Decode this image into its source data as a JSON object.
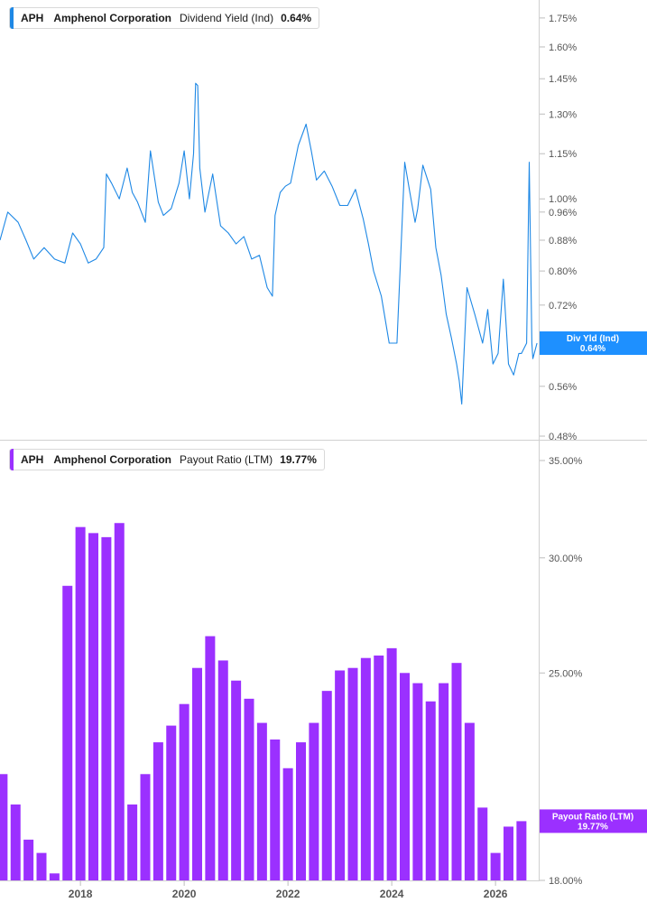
{
  "legend_top": {
    "ticker": "APH",
    "company": "Amphenol Corporation",
    "metric": "Dividend Yield (Ind)",
    "value": "0.64%"
  },
  "legend_bottom": {
    "ticker": "APH",
    "company": "Amphenol Corporation",
    "metric": "Payout Ratio (LTM)",
    "value": "19.77%"
  },
  "colors": {
    "yield_line": "#1e88e5",
    "yield_badge": "#1e90ff",
    "payout_bar": "#9b30ff",
    "payout_badge": "#9b30ff",
    "axis_text": "#555555",
    "grid_line": "#bdbdbd"
  },
  "chart_data": [
    {
      "type": "line",
      "title": "Dividend Yield (Ind)",
      "series": [
        {
          "name": "Div Yld (Ind)",
          "x": [
            2016.45,
            2016.6,
            2016.8,
            2016.95,
            2017.1,
            2017.3,
            2017.5,
            2017.7,
            2017.85,
            2018.0,
            2018.15,
            2018.3,
            2018.45,
            2018.5,
            2018.6,
            2018.75,
            2018.9,
            2019.0,
            2019.1,
            2019.25,
            2019.35,
            2019.5,
            2019.6,
            2019.75,
            2019.9,
            2020.0,
            2020.1,
            2020.18,
            2020.22,
            2020.26,
            2020.3,
            2020.4,
            2020.55,
            2020.7,
            2020.85,
            2021.0,
            2021.15,
            2021.3,
            2021.45,
            2021.6,
            2021.7,
            2021.75,
            2021.85,
            2021.95,
            2022.05,
            2022.2,
            2022.35,
            2022.45,
            2022.55,
            2022.7,
            2022.85,
            2023.0,
            2023.15,
            2023.3,
            2023.45,
            2023.55,
            2023.65,
            2023.8,
            2023.95,
            2024.1,
            2024.25,
            2024.35,
            2024.45,
            2024.5,
            2024.6,
            2024.75,
            2024.85,
            2024.95,
            2025.05,
            2025.15,
            2025.25,
            2025.3,
            2025.35,
            2025.45,
            2025.6,
            2025.75,
            2025.8,
            2025.85,
            2025.95,
            2026.05,
            2026.15,
            2026.25,
            2026.35,
            2026.45,
            2026.5,
            2026.6,
            2026.65,
            2026.7,
            2026.72,
            2026.8
          ],
          "values": [
            0.88,
            0.96,
            0.93,
            0.88,
            0.83,
            0.86,
            0.83,
            0.82,
            0.9,
            0.87,
            0.82,
            0.83,
            0.86,
            1.08,
            1.05,
            1.0,
            1.1,
            1.02,
            0.99,
            0.93,
            1.16,
            0.99,
            0.95,
            0.97,
            1.05,
            1.16,
            1.0,
            1.15,
            1.43,
            1.42,
            1.1,
            0.96,
            1.08,
            0.92,
            0.9,
            0.87,
            0.89,
            0.83,
            0.84,
            0.76,
            0.74,
            0.95,
            1.02,
            1.04,
            1.05,
            1.18,
            1.26,
            1.16,
            1.06,
            1.09,
            1.04,
            0.98,
            0.98,
            1.03,
            0.94,
            0.87,
            0.8,
            0.74,
            0.64,
            0.64,
            1.12,
            1.02,
            0.93,
            0.97,
            1.11,
            1.03,
            0.86,
            0.79,
            0.7,
            0.65,
            0.6,
            0.57,
            0.53,
            0.76,
            0.7,
            0.64,
            0.67,
            0.71,
            0.6,
            0.62,
            0.78,
            0.6,
            0.58,
            0.62,
            0.62,
            0.64,
            1.12,
            0.64,
            0.61,
            0.64
          ]
        }
      ],
      "xlim": [
        2016.45,
        2026.85
      ],
      "ylim": [
        0.48,
        1.85
      ],
      "yscale": "log",
      "ytick_values": [
        1.75,
        1.6,
        1.45,
        1.3,
        1.15,
        1.0,
        0.96,
        0.88,
        0.8,
        0.72,
        0.64,
        0.56,
        0.48
      ],
      "ytick_labels": [
        "1.75%",
        "1.60%",
        "1.45%",
        "1.30%",
        "1.15%",
        "1.00%",
        "0.96%",
        "0.88%",
        "0.80%",
        "0.72%",
        "",
        "0.56%",
        "0.48%"
      ],
      "badge": {
        "label": "Div Yld (Ind)",
        "value": "0.64%",
        "y": 0.64
      }
    },
    {
      "type": "bar",
      "title": "Payout Ratio (LTM)",
      "series": [
        {
          "name": "Payout Ratio (LTM)",
          "x": [
            2016.5,
            2016.75,
            2017.0,
            2017.25,
            2017.5,
            2017.75,
            2018.0,
            2018.25,
            2018.5,
            2018.75,
            2019.0,
            2019.25,
            2019.5,
            2019.75,
            2020.0,
            2020.25,
            2020.5,
            2020.75,
            2021.0,
            2021.25,
            2021.5,
            2021.75,
            2022.0,
            2022.25,
            2022.5,
            2022.75,
            2023.0,
            2023.25,
            2023.5,
            2023.75,
            2024.0,
            2024.25,
            2024.5,
            2024.75,
            2025.0,
            2025.25,
            2025.5,
            2025.75,
            2026.0,
            2026.25,
            2026.5
          ],
          "values": [
            21.3,
            20.3,
            19.2,
            18.8,
            18.2,
            28.7,
            31.5,
            31.2,
            31.0,
            31.7,
            20.3,
            21.3,
            22.4,
            23.0,
            23.8,
            25.2,
            26.5,
            25.5,
            24.7,
            24.0,
            23.1,
            22.5,
            21.5,
            22.4,
            23.1,
            24.3,
            25.1,
            25.2,
            25.6,
            25.7,
            26.0,
            25.0,
            24.6,
            23.9,
            24.6,
            25.4,
            23.1,
            20.2,
            18.8,
            19.6,
            19.77
          ]
        }
      ],
      "xlim": [
        2016.45,
        2026.85
      ],
      "ylim": [
        18.0,
        35.0
      ],
      "yscale": "log",
      "ytick_values": [
        35.0,
        30.0,
        25.0,
        18.0
      ],
      "ytick_labels": [
        "35.00%",
        "30.00%",
        "25.00%",
        "18.00%"
      ],
      "xtick_values": [
        2018,
        2020,
        2022,
        2024,
        2026
      ],
      "xtick_labels": [
        "2018",
        "2020",
        "2022",
        "2024",
        "2026"
      ],
      "badge": {
        "label": "Payout Ratio (LTM)",
        "value": "19.77%",
        "y": 19.77
      }
    }
  ]
}
